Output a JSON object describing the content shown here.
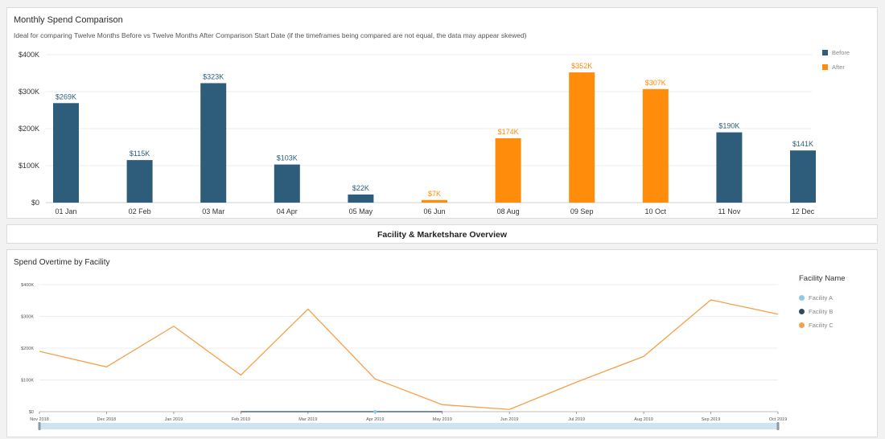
{
  "monthly": {
    "title": "Monthly Spend Comparison",
    "subtitle": "Ideal for comparing Twelve Months Before vs Twelve Months After Comparison Start Date (if the timeframes being compared are not equal, the data may appear skewed)",
    "legend": [
      {
        "label": "Before",
        "color": "#2d5d7b"
      },
      {
        "label": "After",
        "color": "#ff8c0a"
      }
    ]
  },
  "facility_header": {
    "title": "Facility & Marketshare Overview"
  },
  "overtime": {
    "title": "Spend Overtime by Facility",
    "legend_title": "Facility Name",
    "legend": [
      {
        "label": "Facility A",
        "color": "#8ecae6"
      },
      {
        "label": "Facility B",
        "color": "#2d4a5e"
      },
      {
        "label": "Facility C",
        "color": "#f5a04a"
      }
    ]
  },
  "chart_data": [
    {
      "type": "bar",
      "title": "Monthly Spend Comparison",
      "categories": [
        "01 Jan",
        "02 Feb",
        "03 Mar",
        "04 Apr",
        "05 May",
        "06 Jun",
        "08 Aug",
        "09 Sep",
        "10 Oct",
        "11 Nov",
        "12 Dec"
      ],
      "series": [
        {
          "name": "Before",
          "color": "#2d5d7b",
          "values": [
            269,
            115,
            323,
            103,
            22,
            null,
            null,
            null,
            null,
            190,
            141
          ]
        },
        {
          "name": "After",
          "color": "#ff8c0a",
          "values": [
            null,
            null,
            null,
            null,
            null,
            7,
            174,
            352,
            307,
            null,
            null
          ]
        }
      ],
      "value_labels": [
        "$269K",
        "$115K",
        "$323K",
        "$103K",
        "$22K",
        "$7K",
        "$174K",
        "$352K",
        "$307K",
        "$190K",
        "$141K"
      ],
      "y_ticks": [
        "$0",
        "$100K",
        "$200K",
        "$300K",
        "$400K"
      ],
      "ylim": [
        0,
        400
      ],
      "grid": true,
      "legend_position": "top-right"
    },
    {
      "type": "line",
      "title": "Spend Overtime by Facility",
      "x": [
        "Nov 2018",
        "Dec 2018",
        "Jan 2019",
        "Feb 2019",
        "Mar 2019",
        "Apr 2019",
        "May 2019",
        "Jun 2019",
        "Jul 2019",
        "Aug 2019",
        "Sep 2019",
        "Oct 2019"
      ],
      "series": [
        {
          "name": "Facility A",
          "color": "#8ecae6",
          "values": [
            null,
            null,
            null,
            null,
            null,
            0,
            null,
            null,
            null,
            null,
            null,
            null
          ]
        },
        {
          "name": "Facility B",
          "color": "#2d4a5e",
          "values": [
            null,
            null,
            null,
            0,
            0,
            0,
            0,
            null,
            null,
            null,
            null,
            null
          ]
        },
        {
          "name": "Facility C",
          "color": "#f5a04a",
          "values": [
            190,
            141,
            269,
            115,
            323,
            103,
            22,
            7,
            93,
            174,
            352,
            307
          ]
        }
      ],
      "y_ticks": [
        "$0",
        "$100K",
        "$200K",
        "$300K",
        "$400K"
      ],
      "ylim": [
        0,
        400
      ],
      "grid": true,
      "legend_position": "right"
    }
  ]
}
